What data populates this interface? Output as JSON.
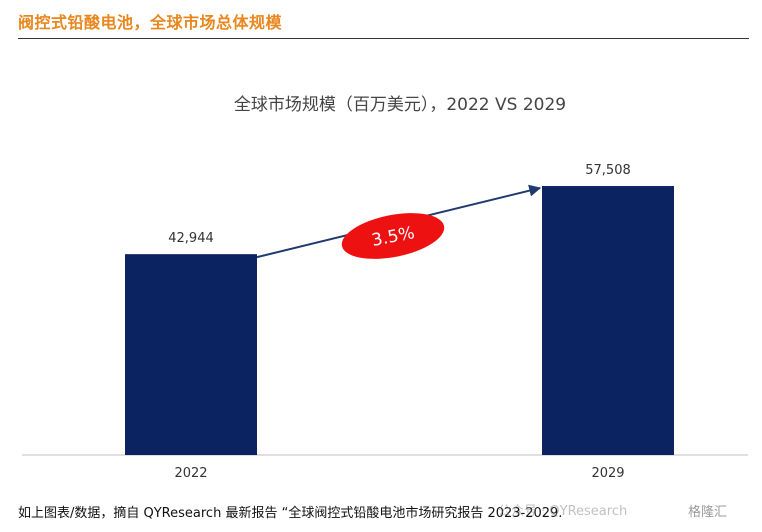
{
  "header": {
    "title": "阀控式铅酸电池，全球市场总体规模"
  },
  "chart_data": {
    "type": "bar",
    "title": "全球市场规模（百万美元），2022 VS 2029",
    "categories": [
      "2022",
      "2029"
    ],
    "values": [
      42944,
      57508
    ],
    "value_labels": [
      "42,944",
      "57,508"
    ],
    "ylim": [
      0,
      65000
    ],
    "grid": false,
    "legend": "none",
    "bar_color": "#0b2461",
    "growth_annotation": {
      "label": "3.5%",
      "fill": "#ee1111",
      "text_color": "#ffffff",
      "arrow_color": "#1f3a6e"
    }
  },
  "footer": {
    "caption": "如上图表/数据，摘自 QYResearch 最新报告 “全球阀控式铅酸电池市场研究报告 2023-2029.",
    "watermark": "公众号 · QYResearch",
    "logo": "格隆汇"
  }
}
